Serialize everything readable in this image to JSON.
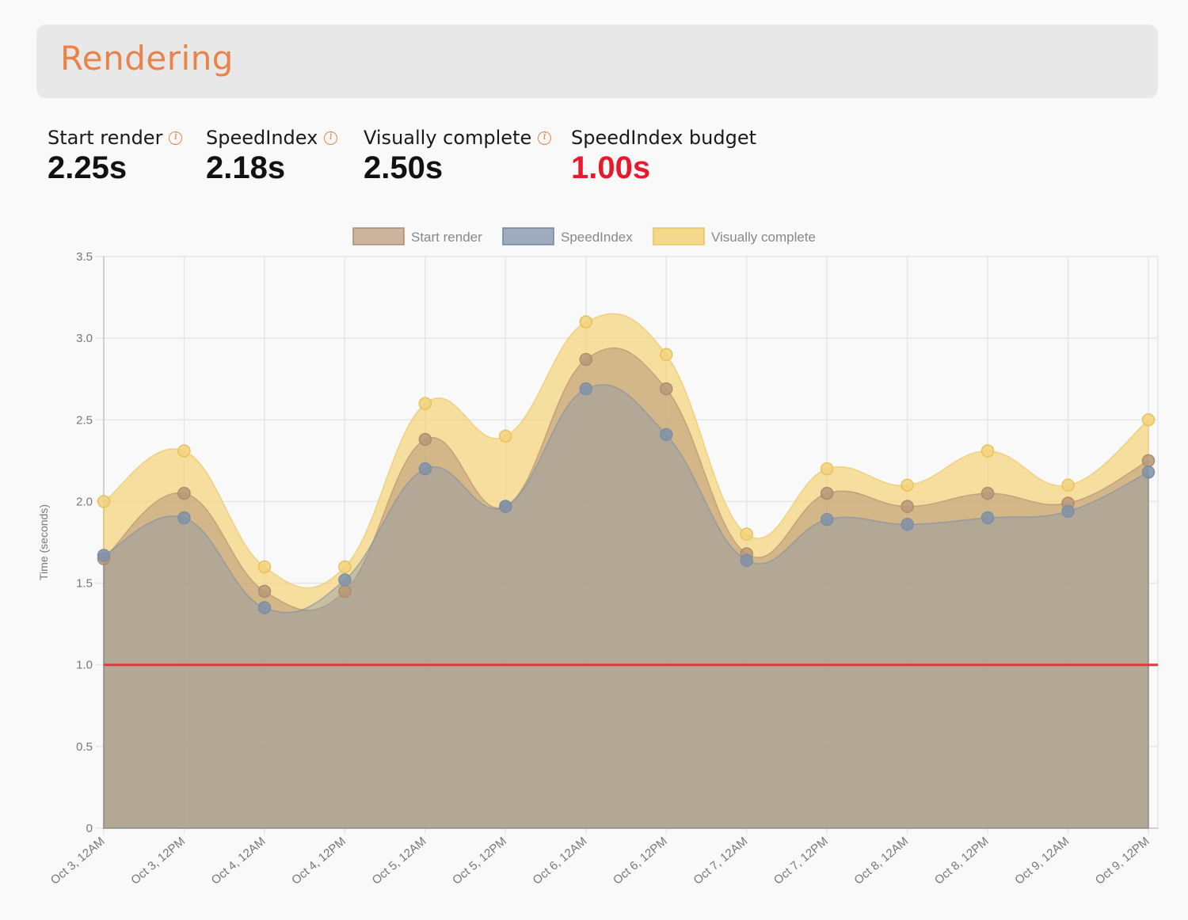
{
  "panel": {
    "title": "Rendering"
  },
  "metrics": [
    {
      "label": "Start render",
      "value": "2.25s",
      "info": true
    },
    {
      "label": "SpeedIndex",
      "value": "2.18s",
      "info": true
    },
    {
      "label": "Visually complete",
      "value": "2.50s",
      "info": true
    },
    {
      "label": "SpeedIndex budget",
      "value": "1.00s",
      "info": false,
      "alert_color": "#e8192c"
    }
  ],
  "colors": {
    "accent": "#e8844a",
    "start_render": "#b89878",
    "speedindex": "#7f92a8",
    "visually_complete": "#f2d27a",
    "budget_line": "#e53935"
  },
  "chart_data": {
    "type": "area",
    "x": [
      "Oct 3, 12AM",
      "Oct 3, 12PM",
      "Oct 4, 12AM",
      "Oct 4, 12PM",
      "Oct 5, 12AM",
      "Oct 5, 12PM",
      "Oct 6, 12AM",
      "Oct 6, 12PM",
      "Oct 7, 12AM",
      "Oct 7, 12PM",
      "Oct 8, 12AM",
      "Oct 8, 12PM",
      "Oct 9, 12AM",
      "Oct 9, 12PM"
    ],
    "series": [
      {
        "name": "Start render",
        "values": [
          1.65,
          2.05,
          1.45,
          1.45,
          2.38,
          1.97,
          2.87,
          2.69,
          1.68,
          2.05,
          1.97,
          2.05,
          1.99,
          2.25
        ]
      },
      {
        "name": "SpeedIndex",
        "values": [
          1.67,
          1.9,
          1.35,
          1.52,
          2.2,
          1.97,
          2.69,
          2.41,
          1.64,
          1.89,
          1.86,
          1.9,
          1.94,
          2.18
        ]
      },
      {
        "name": "Visually complete",
        "values": [
          2.0,
          2.31,
          1.6,
          1.6,
          2.6,
          2.4,
          3.1,
          2.9,
          1.8,
          2.2,
          2.1,
          2.31,
          2.1,
          2.5
        ]
      }
    ],
    "budget": 1.0,
    "ylabel": "Time (seconds)",
    "xlabel": "",
    "ylim": [
      0,
      3.5
    ],
    "yticks": [
      "0",
      "0.5",
      "1.0",
      "1.5",
      "2.0",
      "2.5",
      "3.0",
      "3.5"
    ],
    "grid": true,
    "legend_position": "top-center"
  }
}
